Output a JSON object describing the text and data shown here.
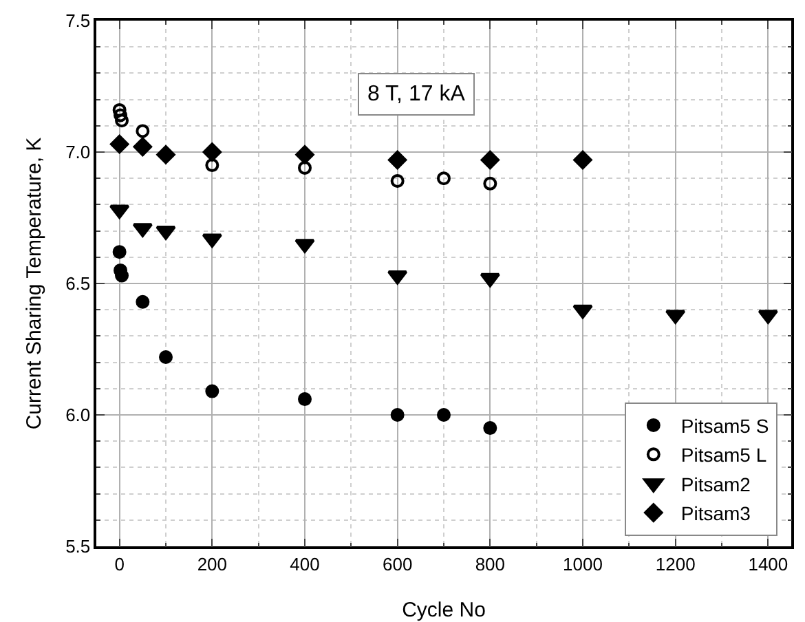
{
  "chart_data": {
    "type": "scatter",
    "xlabel": "Cycle No",
    "ylabel": "Current Sharing Temperature, K",
    "annotations": [
      "8 T, 17 kA"
    ],
    "xlim": [
      -50,
      1450
    ],
    "xticks": [
      0,
      200,
      400,
      600,
      800,
      1000,
      1200,
      1400
    ],
    "ylim": [
      5.5,
      7.5
    ],
    "yticks": [
      5.5,
      {
        "value": 6,
        "label": "6.0"
      },
      6.5,
      {
        "value": 7,
        "label": "7.0"
      },
      7.5
    ],
    "grid": true,
    "legend": "bottom right",
    "series": [
      {
        "name": "Pitsam5 S",
        "color": "#000000",
        "marker": "circle",
        "x": [
          0,
          2,
          5,
          50,
          100,
          200,
          400,
          600,
          700,
          800
        ],
        "values": [
          6.62,
          6.55,
          6.53,
          6.43,
          6.22,
          6.09,
          6.06,
          6.0,
          6.0,
          5.95
        ]
      },
      {
        "name": "Pitsam5 L",
        "color": "#000000",
        "marker": "circle-open",
        "x": [
          0,
          2,
          5,
          50,
          100,
          200,
          400,
          600,
          700,
          800
        ],
        "values": [
          7.16,
          7.14,
          7.12,
          7.08,
          null,
          6.95,
          6.94,
          6.89,
          6.9,
          6.88
        ]
      },
      {
        "name": "Pitsam2",
        "color": "#000000",
        "marker": "triangle",
        "x": [
          0,
          50,
          100,
          200,
          400,
          600,
          800,
          1000,
          1200,
          1400
        ],
        "values": [
          6.78,
          6.71,
          6.7,
          6.67,
          6.65,
          6.53,
          6.52,
          6.4,
          6.38,
          6.38
        ]
      },
      {
        "name": "Pitsam3",
        "color": "#000000",
        "marker": "diamond",
        "x": [
          0,
          50,
          100,
          200,
          400,
          600,
          800,
          1000
        ],
        "values": [
          7.03,
          7.02,
          6.99,
          7.0,
          6.99,
          6.97,
          6.97,
          6.97
        ]
      }
    ]
  }
}
